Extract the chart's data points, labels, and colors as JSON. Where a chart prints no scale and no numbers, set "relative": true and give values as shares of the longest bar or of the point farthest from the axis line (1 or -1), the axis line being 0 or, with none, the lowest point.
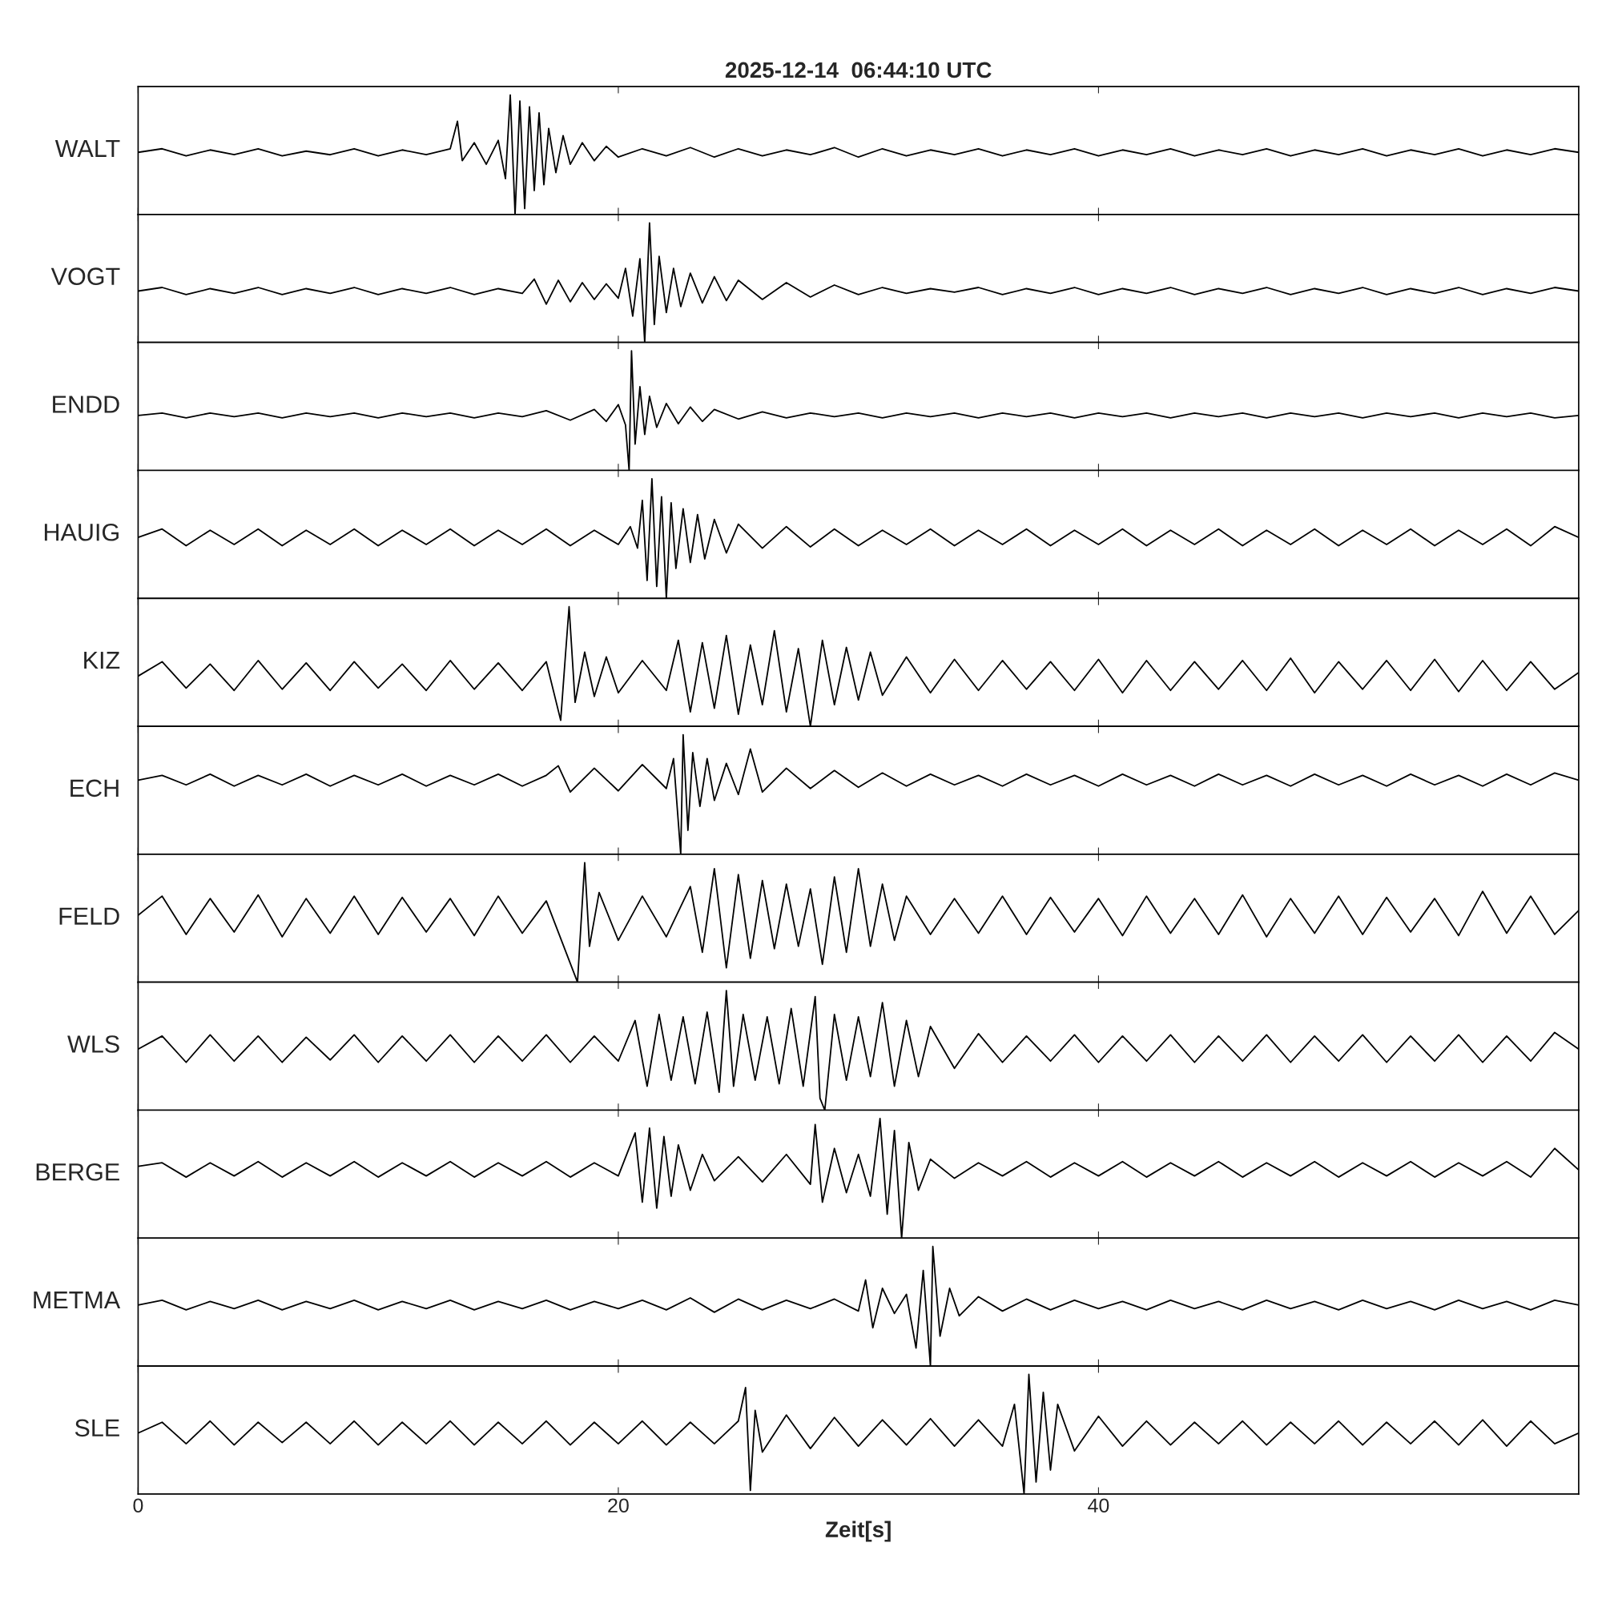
{
  "chart_data": [
    {
      "type": "line",
      "title": "2025-12-14  06:44:10 UTC",
      "ylabel": "WALT",
      "relative": true,
      "color": "#000000",
      "xlim": [
        0,
        60
      ],
      "xticks": [
        0,
        20,
        40
      ],
      "tick_labels": false,
      "grid": false,
      "x": [
        0,
        1,
        2,
        3,
        4,
        5,
        6,
        7,
        8,
        9,
        10,
        11,
        12,
        13,
        13.3,
        13.5,
        14,
        14.5,
        15,
        15.3,
        15.5,
        15.7,
        15.9,
        16.1,
        16.3,
        16.5,
        16.7,
        16.9,
        17.1,
        17.4,
        17.7,
        18,
        18.5,
        19,
        19.5,
        20,
        21,
        22,
        23,
        24,
        25,
        26,
        27,
        28,
        29,
        30,
        31,
        32,
        33,
        34,
        35,
        36,
        37,
        38,
        39,
        40,
        41,
        42,
        43,
        44,
        45,
        46,
        47,
        48,
        49,
        50,
        51,
        52,
        53,
        54,
        55,
        56,
        57,
        58,
        59,
        60
      ],
      "values": [
        0.52,
        0.55,
        0.49,
        0.54,
        0.5,
        0.55,
        0.49,
        0.53,
        0.5,
        0.55,
        0.49,
        0.54,
        0.5,
        0.55,
        0.78,
        0.45,
        0.6,
        0.42,
        0.62,
        0.3,
        1.0,
        0.0,
        0.95,
        0.05,
        0.9,
        0.2,
        0.85,
        0.25,
        0.72,
        0.35,
        0.66,
        0.42,
        0.6,
        0.45,
        0.57,
        0.48,
        0.55,
        0.49,
        0.56,
        0.48,
        0.55,
        0.49,
        0.54,
        0.5,
        0.56,
        0.48,
        0.55,
        0.49,
        0.54,
        0.5,
        0.55,
        0.49,
        0.54,
        0.5,
        0.55,
        0.49,
        0.54,
        0.5,
        0.55,
        0.49,
        0.54,
        0.5,
        0.55,
        0.49,
        0.54,
        0.5,
        0.55,
        0.49,
        0.54,
        0.5,
        0.55,
        0.49,
        0.54,
        0.5,
        0.55,
        0.52
      ]
    },
    {
      "type": "line",
      "ylabel": "VOGT",
      "relative": true,
      "color": "#000000",
      "xlim": [
        0,
        60
      ],
      "xticks": [
        0,
        20,
        40
      ],
      "tick_labels": false,
      "grid": false,
      "x": [
        0,
        1,
        2,
        3,
        4,
        5,
        6,
        7,
        8,
        9,
        10,
        11,
        12,
        13,
        14,
        15,
        16,
        16.5,
        17,
        17.5,
        18,
        18.5,
        19,
        19.5,
        20,
        20.3,
        20.6,
        20.9,
        21.1,
        21.3,
        21.5,
        21.7,
        22,
        22.3,
        22.6,
        23,
        23.5,
        24,
        24.5,
        25,
        26,
        27,
        28,
        29,
        30,
        31,
        32,
        33,
        34,
        35,
        36,
        37,
        38,
        39,
        40,
        41,
        42,
        43,
        44,
        45,
        46,
        47,
        48,
        49,
        50,
        51,
        52,
        53,
        54,
        55,
        56,
        57,
        58,
        59,
        60
      ],
      "values": [
        0.43,
        0.46,
        0.4,
        0.45,
        0.41,
        0.46,
        0.4,
        0.45,
        0.41,
        0.46,
        0.4,
        0.45,
        0.41,
        0.46,
        0.4,
        0.45,
        0.41,
        0.53,
        0.32,
        0.52,
        0.34,
        0.5,
        0.36,
        0.49,
        0.37,
        0.62,
        0.22,
        0.7,
        0.0,
        1.0,
        0.15,
        0.72,
        0.25,
        0.62,
        0.3,
        0.58,
        0.33,
        0.55,
        0.35,
        0.52,
        0.36,
        0.5,
        0.38,
        0.48,
        0.4,
        0.46,
        0.41,
        0.45,
        0.42,
        0.46,
        0.4,
        0.45,
        0.41,
        0.46,
        0.4,
        0.45,
        0.41,
        0.46,
        0.4,
        0.45,
        0.41,
        0.46,
        0.4,
        0.45,
        0.41,
        0.46,
        0.4,
        0.45,
        0.41,
        0.46,
        0.4,
        0.45,
        0.41,
        0.46,
        0.43
      ]
    },
    {
      "type": "line",
      "ylabel": "ENDD",
      "relative": true,
      "color": "#000000",
      "xlim": [
        0,
        60
      ],
      "xticks": [
        0,
        20,
        40
      ],
      "tick_labels": false,
      "grid": false,
      "x": [
        0,
        1,
        2,
        3,
        4,
        5,
        6,
        7,
        8,
        9,
        10,
        11,
        12,
        13,
        14,
        15,
        16,
        17,
        18,
        19,
        19.5,
        20,
        20.3,
        20.45,
        20.55,
        20.7,
        20.9,
        21.1,
        21.3,
        21.6,
        22,
        22.5,
        23,
        23.5,
        24,
        25,
        26,
        27,
        28,
        29,
        30,
        31,
        32,
        33,
        34,
        35,
        36,
        37,
        38,
        39,
        40,
        41,
        42,
        43,
        44,
        45,
        46,
        47,
        48,
        49,
        50,
        51,
        52,
        53,
        54,
        55,
        56,
        57,
        58,
        59,
        60
      ],
      "values": [
        0.46,
        0.48,
        0.44,
        0.48,
        0.45,
        0.48,
        0.44,
        0.48,
        0.45,
        0.48,
        0.44,
        0.48,
        0.45,
        0.48,
        0.44,
        0.48,
        0.45,
        0.5,
        0.42,
        0.51,
        0.41,
        0.55,
        0.38,
        0.0,
        1.0,
        0.22,
        0.7,
        0.3,
        0.62,
        0.36,
        0.56,
        0.39,
        0.53,
        0.41,
        0.51,
        0.43,
        0.49,
        0.44,
        0.48,
        0.45,
        0.48,
        0.44,
        0.48,
        0.45,
        0.48,
        0.44,
        0.48,
        0.45,
        0.48,
        0.44,
        0.48,
        0.45,
        0.48,
        0.44,
        0.48,
        0.45,
        0.48,
        0.44,
        0.48,
        0.45,
        0.48,
        0.44,
        0.48,
        0.45,
        0.48,
        0.44,
        0.48,
        0.45,
        0.48,
        0.44,
        0.46
      ]
    },
    {
      "type": "line",
      "ylabel": "HAUIG",
      "relative": true,
      "color": "#000000",
      "xlim": [
        0,
        60
      ],
      "xticks": [
        0,
        20,
        40
      ],
      "tick_labels": false,
      "grid": false,
      "x": [
        0,
        1,
        2,
        3,
        4,
        5,
        6,
        7,
        8,
        9,
        10,
        11,
        12,
        13,
        14,
        15,
        16,
        17,
        18,
        19,
        20,
        20.5,
        20.8,
        21.0,
        21.2,
        21.4,
        21.6,
        21.8,
        22.0,
        22.2,
        22.4,
        22.7,
        23,
        23.3,
        23.6,
        24,
        24.5,
        25,
        26,
        27,
        28,
        29,
        30,
        31,
        32,
        33,
        34,
        35,
        36,
        37,
        38,
        39,
        40,
        41,
        42,
        43,
        44,
        45,
        46,
        47,
        48,
        49,
        50,
        51,
        52,
        53,
        54,
        55,
        56,
        57,
        58,
        59,
        60
      ],
      "values": [
        0.51,
        0.58,
        0.44,
        0.57,
        0.45,
        0.58,
        0.44,
        0.57,
        0.45,
        0.58,
        0.44,
        0.57,
        0.45,
        0.58,
        0.44,
        0.57,
        0.45,
        0.58,
        0.44,
        0.57,
        0.45,
        0.6,
        0.42,
        0.82,
        0.15,
        1.0,
        0.1,
        0.85,
        0.0,
        0.8,
        0.25,
        0.75,
        0.3,
        0.7,
        0.33,
        0.66,
        0.38,
        0.62,
        0.42,
        0.6,
        0.43,
        0.58,
        0.44,
        0.57,
        0.45,
        0.58,
        0.44,
        0.57,
        0.45,
        0.58,
        0.44,
        0.57,
        0.45,
        0.58,
        0.44,
        0.57,
        0.45,
        0.58,
        0.44,
        0.57,
        0.45,
        0.58,
        0.44,
        0.57,
        0.45,
        0.58,
        0.44,
        0.57,
        0.45,
        0.58,
        0.44,
        0.6,
        0.51
      ]
    },
    {
      "type": "line",
      "ylabel": "KIZ",
      "relative": true,
      "color": "#000000",
      "xlim": [
        0,
        60
      ],
      "xticks": [
        0,
        20,
        40
      ],
      "tick_labels": false,
      "grid": false,
      "x": [
        0,
        1,
        2,
        3,
        4,
        5,
        6,
        7,
        8,
        9,
        10,
        11,
        12,
        13,
        14,
        15,
        16,
        17,
        17.6,
        17.8,
        17.95,
        18.2,
        18.6,
        19,
        19.5,
        20,
        21,
        22,
        22.5,
        23,
        23.5,
        24,
        24.5,
        25,
        25.5,
        26,
        26.5,
        27,
        27.5,
        28,
        28.5,
        29,
        29.5,
        30,
        30.5,
        31,
        32,
        33,
        34,
        35,
        36,
        37,
        38,
        39,
        40,
        41,
        42,
        43,
        44,
        45,
        46,
        47,
        48,
        49,
        50,
        51,
        52,
        53,
        54,
        55,
        56,
        57,
        58,
        59,
        60
      ],
      "values": [
        0.42,
        0.54,
        0.32,
        0.52,
        0.3,
        0.55,
        0.31,
        0.53,
        0.3,
        0.54,
        0.32,
        0.52,
        0.3,
        0.55,
        0.31,
        0.53,
        0.3,
        0.54,
        0.05,
        0.6,
        1.0,
        0.2,
        0.62,
        0.25,
        0.58,
        0.28,
        0.55,
        0.3,
        0.72,
        0.12,
        0.7,
        0.15,
        0.76,
        0.1,
        0.68,
        0.18,
        0.8,
        0.12,
        0.65,
        0.0,
        0.72,
        0.18,
        0.66,
        0.22,
        0.62,
        0.26,
        0.58,
        0.28,
        0.56,
        0.3,
        0.55,
        0.31,
        0.54,
        0.3,
        0.56,
        0.28,
        0.55,
        0.3,
        0.54,
        0.31,
        0.55,
        0.3,
        0.57,
        0.28,
        0.54,
        0.31,
        0.55,
        0.3,
        0.56,
        0.29,
        0.55,
        0.3,
        0.54,
        0.31,
        0.45
      ]
    },
    {
      "type": "line",
      "ylabel": "ECH",
      "relative": true,
      "color": "#000000",
      "xlim": [
        0,
        60
      ],
      "xticks": [
        0,
        20,
        40
      ],
      "tick_labels": false,
      "grid": false,
      "x": [
        0,
        1,
        2,
        3,
        4,
        5,
        6,
        7,
        8,
        9,
        10,
        11,
        12,
        13,
        14,
        15,
        16,
        17,
        17.5,
        18,
        19,
        20,
        21,
        22,
        22.3,
        22.6,
        22.7,
        22.9,
        23.1,
        23.4,
        23.7,
        24,
        24.5,
        25,
        25.5,
        26,
        27,
        28,
        29,
        30,
        31,
        32,
        33,
        34,
        35,
        36,
        37,
        38,
        39,
        40,
        41,
        42,
        43,
        44,
        45,
        46,
        47,
        48,
        49,
        50,
        51,
        52,
        53,
        54,
        55,
        56,
        57,
        58,
        59,
        60
      ],
      "values": [
        0.62,
        0.66,
        0.58,
        0.67,
        0.57,
        0.66,
        0.58,
        0.67,
        0.57,
        0.66,
        0.58,
        0.67,
        0.57,
        0.66,
        0.58,
        0.67,
        0.57,
        0.66,
        0.74,
        0.52,
        0.72,
        0.53,
        0.75,
        0.55,
        0.8,
        0.0,
        1.0,
        0.2,
        0.85,
        0.4,
        0.8,
        0.45,
        0.76,
        0.5,
        0.88,
        0.52,
        0.72,
        0.55,
        0.7,
        0.56,
        0.68,
        0.57,
        0.67,
        0.58,
        0.66,
        0.57,
        0.67,
        0.58,
        0.66,
        0.57,
        0.67,
        0.58,
        0.66,
        0.57,
        0.67,
        0.58,
        0.66,
        0.57,
        0.67,
        0.58,
        0.66,
        0.57,
        0.67,
        0.58,
        0.66,
        0.57,
        0.67,
        0.58,
        0.68,
        0.62
      ]
    },
    {
      "type": "line",
      "ylabel": "FELD",
      "relative": true,
      "color": "#000000",
      "xlim": [
        0,
        60
      ],
      "xticks": [
        0,
        20,
        40
      ],
      "tick_labels": false,
      "grid": false,
      "x": [
        0,
        1,
        2,
        3,
        4,
        5,
        6,
        7,
        8,
        9,
        10,
        11,
        12,
        13,
        14,
        15,
        16,
        17,
        18.3,
        18.6,
        18.8,
        19.2,
        20,
        21,
        22,
        23,
        23.5,
        24,
        24.5,
        25,
        25.5,
        26,
        26.5,
        27,
        27.5,
        28,
        28.5,
        29,
        29.5,
        30,
        30.5,
        31,
        31.5,
        32,
        33,
        34,
        35,
        36,
        37,
        38,
        39,
        40,
        41,
        42,
        43,
        44,
        45,
        46,
        47,
        48,
        49,
        50,
        51,
        52,
        53,
        54,
        55,
        56,
        57,
        58,
        59,
        60
      ],
      "values": [
        0.56,
        0.72,
        0.4,
        0.7,
        0.42,
        0.73,
        0.38,
        0.7,
        0.41,
        0.72,
        0.4,
        0.71,
        0.42,
        0.7,
        0.39,
        0.72,
        0.41,
        0.68,
        0.0,
        1.0,
        0.3,
        0.75,
        0.35,
        0.72,
        0.38,
        0.8,
        0.25,
        0.95,
        0.12,
        0.9,
        0.2,
        0.85,
        0.28,
        0.82,
        0.3,
        0.78,
        0.15,
        0.88,
        0.25,
        0.95,
        0.3,
        0.82,
        0.35,
        0.72,
        0.4,
        0.7,
        0.41,
        0.72,
        0.4,
        0.71,
        0.42,
        0.7,
        0.39,
        0.72,
        0.41,
        0.7,
        0.4,
        0.73,
        0.38,
        0.7,
        0.41,
        0.72,
        0.4,
        0.71,
        0.42,
        0.7,
        0.39,
        0.76,
        0.41,
        0.72,
        0.4,
        0.6
      ]
    },
    {
      "type": "line",
      "ylabel": "WLS",
      "relative": true,
      "color": "#000000",
      "xlim": [
        0,
        60
      ],
      "xticks": [
        0,
        20,
        40
      ],
      "tick_labels": false,
      "grid": false,
      "x": [
        0,
        1,
        2,
        3,
        4,
        5,
        6,
        7,
        8,
        9,
        10,
        11,
        12,
        13,
        14,
        15,
        16,
        17,
        18,
        19,
        20,
        20.7,
        21.2,
        21.7,
        22.2,
        22.7,
        23.2,
        23.7,
        24.2,
        24.5,
        24.8,
        25.2,
        25.7,
        26.2,
        26.7,
        27.2,
        27.7,
        28.2,
        28.4,
        28.6,
        29,
        29.5,
        30,
        30.5,
        31,
        31.5,
        32,
        32.5,
        33,
        34,
        35,
        36,
        37,
        38,
        39,
        40,
        41,
        42,
        43,
        44,
        45,
        46,
        47,
        48,
        49,
        50,
        51,
        52,
        53,
        54,
        55,
        56,
        57,
        58,
        59,
        60
      ],
      "values": [
        0.51,
        0.62,
        0.4,
        0.63,
        0.41,
        0.62,
        0.4,
        0.61,
        0.42,
        0.63,
        0.4,
        0.62,
        0.41,
        0.63,
        0.4,
        0.62,
        0.41,
        0.63,
        0.4,
        0.62,
        0.41,
        0.75,
        0.2,
        0.8,
        0.25,
        0.78,
        0.22,
        0.82,
        0.15,
        1.0,
        0.2,
        0.8,
        0.25,
        0.78,
        0.22,
        0.85,
        0.2,
        0.95,
        0.1,
        0.0,
        0.8,
        0.25,
        0.78,
        0.28,
        0.9,
        0.2,
        0.75,
        0.28,
        0.7,
        0.35,
        0.64,
        0.4,
        0.62,
        0.41,
        0.63,
        0.4,
        0.62,
        0.41,
        0.63,
        0.4,
        0.62,
        0.41,
        0.63,
        0.4,
        0.62,
        0.41,
        0.63,
        0.4,
        0.62,
        0.41,
        0.63,
        0.4,
        0.62,
        0.41,
        0.65,
        0.51
      ]
    },
    {
      "type": "line",
      "ylabel": "BERGE",
      "relative": true,
      "color": "#000000",
      "xlim": [
        0,
        60
      ],
      "xticks": [
        0,
        20,
        40
      ],
      "tick_labels": false,
      "grid": false,
      "x": [
        0,
        1,
        2,
        3,
        4,
        5,
        6,
        7,
        8,
        9,
        10,
        11,
        12,
        13,
        14,
        15,
        16,
        17,
        18,
        19,
        20,
        20.7,
        21.0,
        21.3,
        21.6,
        21.9,
        22.2,
        22.5,
        23,
        23.5,
        24,
        25,
        26,
        27,
        28,
        28.2,
        28.5,
        29,
        29.5,
        30,
        30.5,
        30.9,
        31.2,
        31.5,
        31.8,
        32.1,
        32.5,
        33,
        34,
        35,
        36,
        37,
        38,
        39,
        40,
        41,
        42,
        43,
        44,
        45,
        46,
        47,
        48,
        49,
        50,
        51,
        52,
        53,
        54,
        55,
        56,
        57,
        58,
        59,
        60
      ],
      "values": [
        0.6,
        0.63,
        0.51,
        0.63,
        0.52,
        0.64,
        0.51,
        0.63,
        0.52,
        0.64,
        0.51,
        0.63,
        0.52,
        0.64,
        0.51,
        0.63,
        0.52,
        0.64,
        0.51,
        0.63,
        0.52,
        0.88,
        0.3,
        0.92,
        0.25,
        0.85,
        0.35,
        0.78,
        0.4,
        0.7,
        0.48,
        0.68,
        0.47,
        0.7,
        0.45,
        0.95,
        0.3,
        0.75,
        0.38,
        0.7,
        0.35,
        1.0,
        0.2,
        0.9,
        0.0,
        0.8,
        0.4,
        0.66,
        0.5,
        0.63,
        0.52,
        0.64,
        0.51,
        0.63,
        0.52,
        0.64,
        0.51,
        0.63,
        0.52,
        0.64,
        0.51,
        0.63,
        0.52,
        0.64,
        0.51,
        0.63,
        0.52,
        0.64,
        0.51,
        0.63,
        0.52,
        0.64,
        0.51,
        0.75,
        0.57
      ]
    },
    {
      "type": "line",
      "ylabel": "METMA",
      "relative": true,
      "color": "#000000",
      "xlim": [
        0,
        60
      ],
      "xticks": [
        0,
        20,
        40
      ],
      "tick_labels": false,
      "grid": false,
      "x": [
        0,
        1,
        2,
        3,
        4,
        5,
        6,
        7,
        8,
        9,
        10,
        11,
        12,
        13,
        14,
        15,
        16,
        17,
        18,
        19,
        20,
        21,
        22,
        23,
        24,
        25,
        26,
        27,
        28,
        29,
        30,
        30.3,
        30.6,
        31,
        31.5,
        32,
        32.4,
        32.7,
        33,
        33.1,
        33.4,
        33.8,
        34.2,
        35,
        36,
        37,
        38,
        39,
        40,
        41,
        42,
        43,
        44,
        45,
        46,
        47,
        48,
        49,
        50,
        51,
        52,
        53,
        54,
        55,
        56,
        57,
        58,
        59,
        60
      ],
      "values": [
        0.51,
        0.55,
        0.47,
        0.54,
        0.48,
        0.55,
        0.47,
        0.54,
        0.48,
        0.55,
        0.47,
        0.54,
        0.48,
        0.55,
        0.47,
        0.54,
        0.48,
        0.55,
        0.47,
        0.54,
        0.48,
        0.55,
        0.47,
        0.57,
        0.45,
        0.56,
        0.47,
        0.55,
        0.48,
        0.56,
        0.46,
        0.72,
        0.32,
        0.65,
        0.44,
        0.6,
        0.15,
        0.8,
        0.0,
        1.0,
        0.25,
        0.65,
        0.42,
        0.58,
        0.46,
        0.56,
        0.47,
        0.55,
        0.48,
        0.54,
        0.47,
        0.55,
        0.48,
        0.54,
        0.47,
        0.55,
        0.48,
        0.54,
        0.47,
        0.55,
        0.48,
        0.54,
        0.47,
        0.55,
        0.48,
        0.54,
        0.47,
        0.55,
        0.51
      ]
    },
    {
      "type": "line",
      "ylabel": "SLE",
      "xlabel": "Zeit[s]",
      "relative": true,
      "color": "#000000",
      "xlim": [
        0,
        60
      ],
      "xticks": [
        0,
        20,
        40
      ],
      "tick_labels": "x",
      "grid": false,
      "x": [
        0,
        1,
        2,
        3,
        4,
        5,
        6,
        7,
        8,
        9,
        10,
        11,
        12,
        13,
        14,
        15,
        16,
        17,
        18,
        19,
        20,
        21,
        22,
        23,
        24,
        25,
        25.3,
        25.5,
        25.7,
        26,
        27,
        28,
        29,
        30,
        31,
        32,
        33,
        34,
        35,
        36,
        36.5,
        36.9,
        37.1,
        37.4,
        37.7,
        38,
        38.3,
        39,
        40,
        41,
        42,
        43,
        44,
        45,
        46,
        47,
        48,
        49,
        50,
        51,
        52,
        53,
        54,
        55,
        56,
        57,
        58,
        59,
        60
      ],
      "values": [
        0.51,
        0.6,
        0.42,
        0.61,
        0.41,
        0.6,
        0.43,
        0.6,
        0.42,
        0.61,
        0.41,
        0.6,
        0.42,
        0.61,
        0.41,
        0.6,
        0.42,
        0.61,
        0.41,
        0.6,
        0.42,
        0.61,
        0.41,
        0.6,
        0.42,
        0.61,
        0.89,
        0.03,
        0.7,
        0.35,
        0.66,
        0.38,
        0.64,
        0.4,
        0.62,
        0.41,
        0.63,
        0.4,
        0.62,
        0.4,
        0.75,
        0.0,
        1.0,
        0.1,
        0.85,
        0.2,
        0.75,
        0.36,
        0.65,
        0.4,
        0.61,
        0.41,
        0.6,
        0.42,
        0.61,
        0.41,
        0.6,
        0.42,
        0.61,
        0.41,
        0.6,
        0.42,
        0.61,
        0.41,
        0.62,
        0.4,
        0.61,
        0.42,
        0.51
      ]
    }
  ]
}
